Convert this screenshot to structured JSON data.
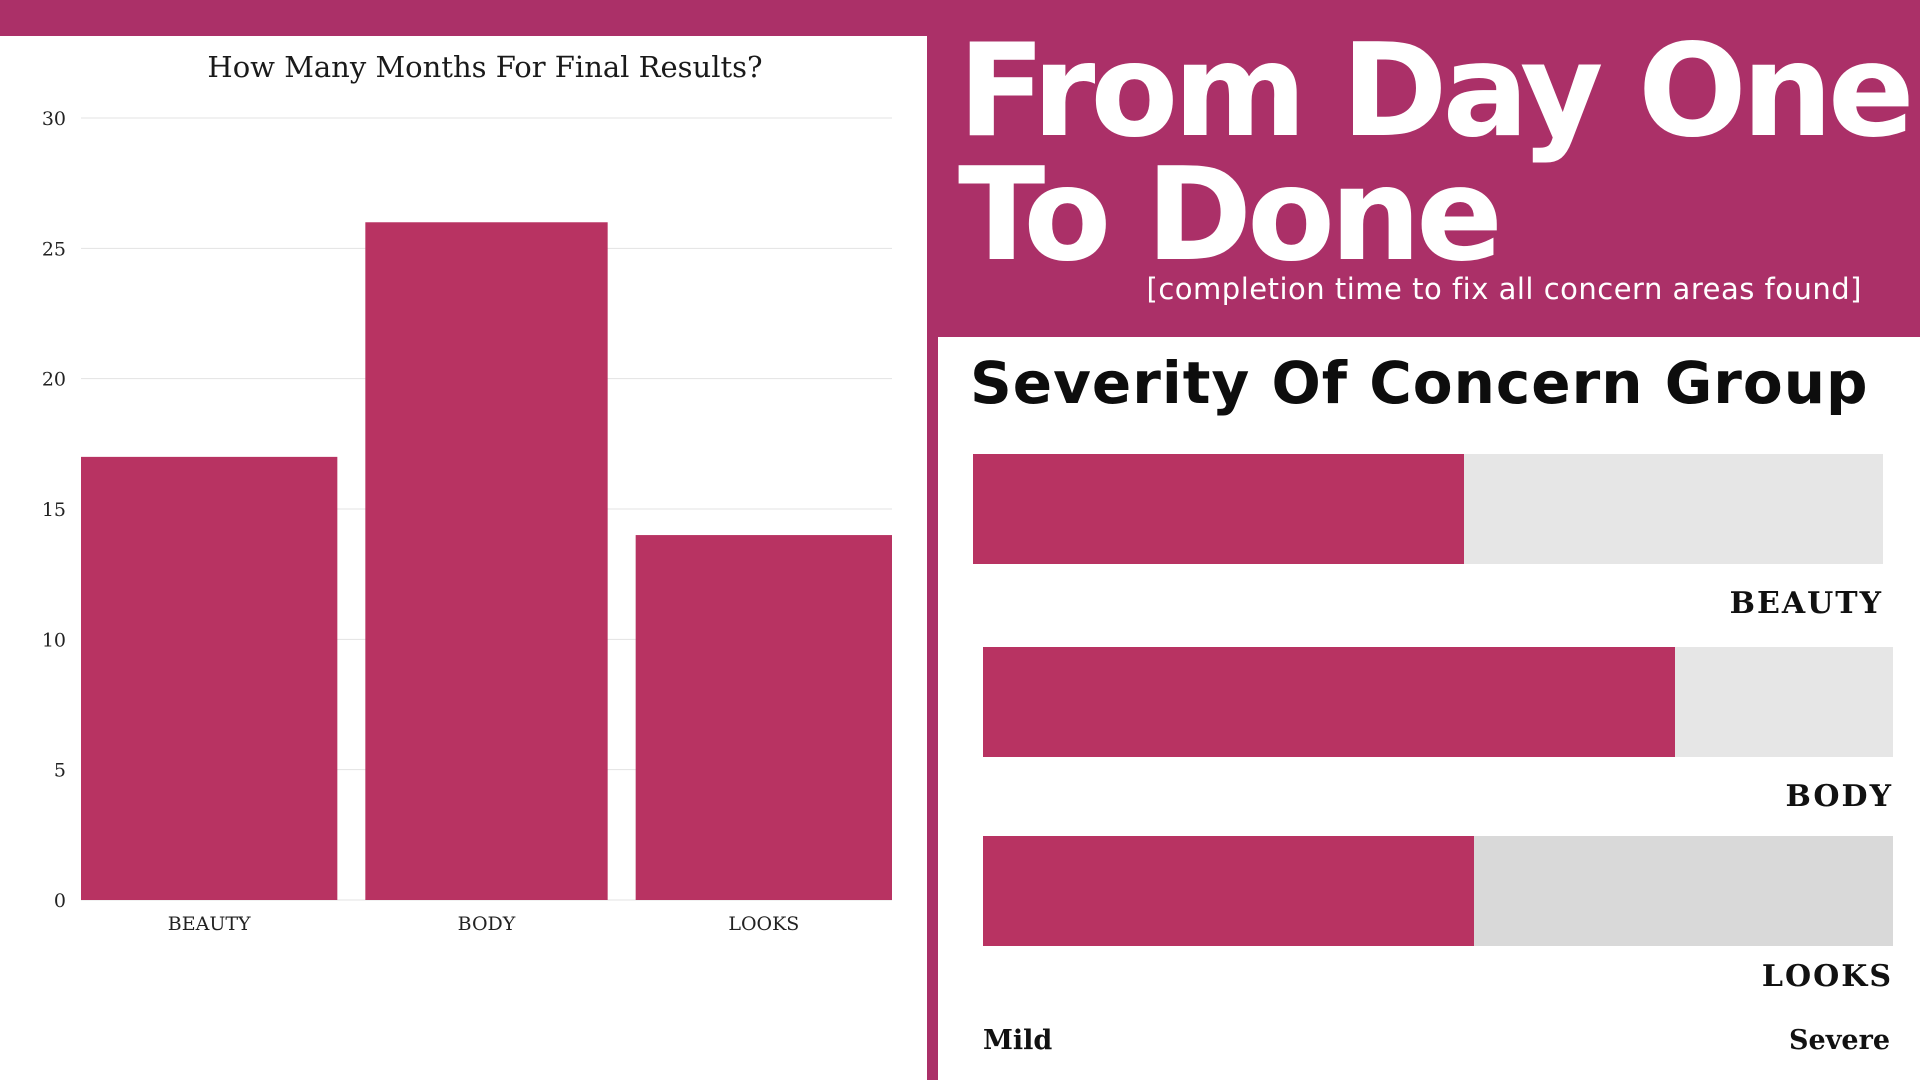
{
  "header": {
    "title_line1": "From Day One",
    "title_line2": "To Done",
    "subtitle": "[completion time to fix all concern areas found]"
  },
  "chart_data": {
    "type": "bar",
    "title": "How Many Months For Final Results?",
    "categories": [
      "BEAUTY",
      "BODY",
      "LOOKS"
    ],
    "values": [
      17,
      26,
      14
    ],
    "ylim": [
      0,
      30
    ],
    "yticks": [
      0,
      5,
      10,
      15,
      20,
      25,
      30
    ],
    "xlabel": "",
    "ylabel": "",
    "grid": true,
    "colors": {
      "bar": "#b83362",
      "grid": "#e3e3e3"
    }
  },
  "severity": {
    "title": "Severity Of Concern Group",
    "scale_min_label": "Mild",
    "scale_max_label": "Severe",
    "groups": [
      {
        "label": "BEAUTY",
        "level": 0.54
      },
      {
        "label": "BODY",
        "level": 0.76
      },
      {
        "label": "LOOKS",
        "level": 0.54
      }
    ],
    "colors": {
      "fill": "#b83362",
      "track": "#e6e6e6"
    }
  }
}
